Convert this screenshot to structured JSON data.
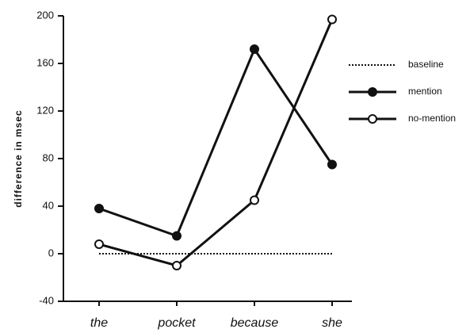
{
  "chart_data": {
    "type": "line",
    "y_label": "difference in msec",
    "categories": [
      "the",
      "pocket",
      "because",
      "she"
    ],
    "series": [
      {
        "name": "baseline",
        "color": "#111111",
        "dash": "dotted",
        "marker": "none",
        "values": [
          0,
          0,
          0,
          0
        ]
      },
      {
        "name": "mention",
        "color": "#111111",
        "dash": "solid",
        "marker": "filled",
        "values": [
          38,
          15,
          172,
          75
        ]
      },
      {
        "name": "no-mention",
        "color": "#111111",
        "dash": "solid",
        "marker": "open",
        "values": [
          8,
          -10,
          45,
          197
        ]
      }
    ],
    "ylim": [
      -40,
      200
    ],
    "yticks": [
      -40,
      0,
      40,
      80,
      120,
      160,
      200
    ],
    "grid": false,
    "legend": "right"
  }
}
